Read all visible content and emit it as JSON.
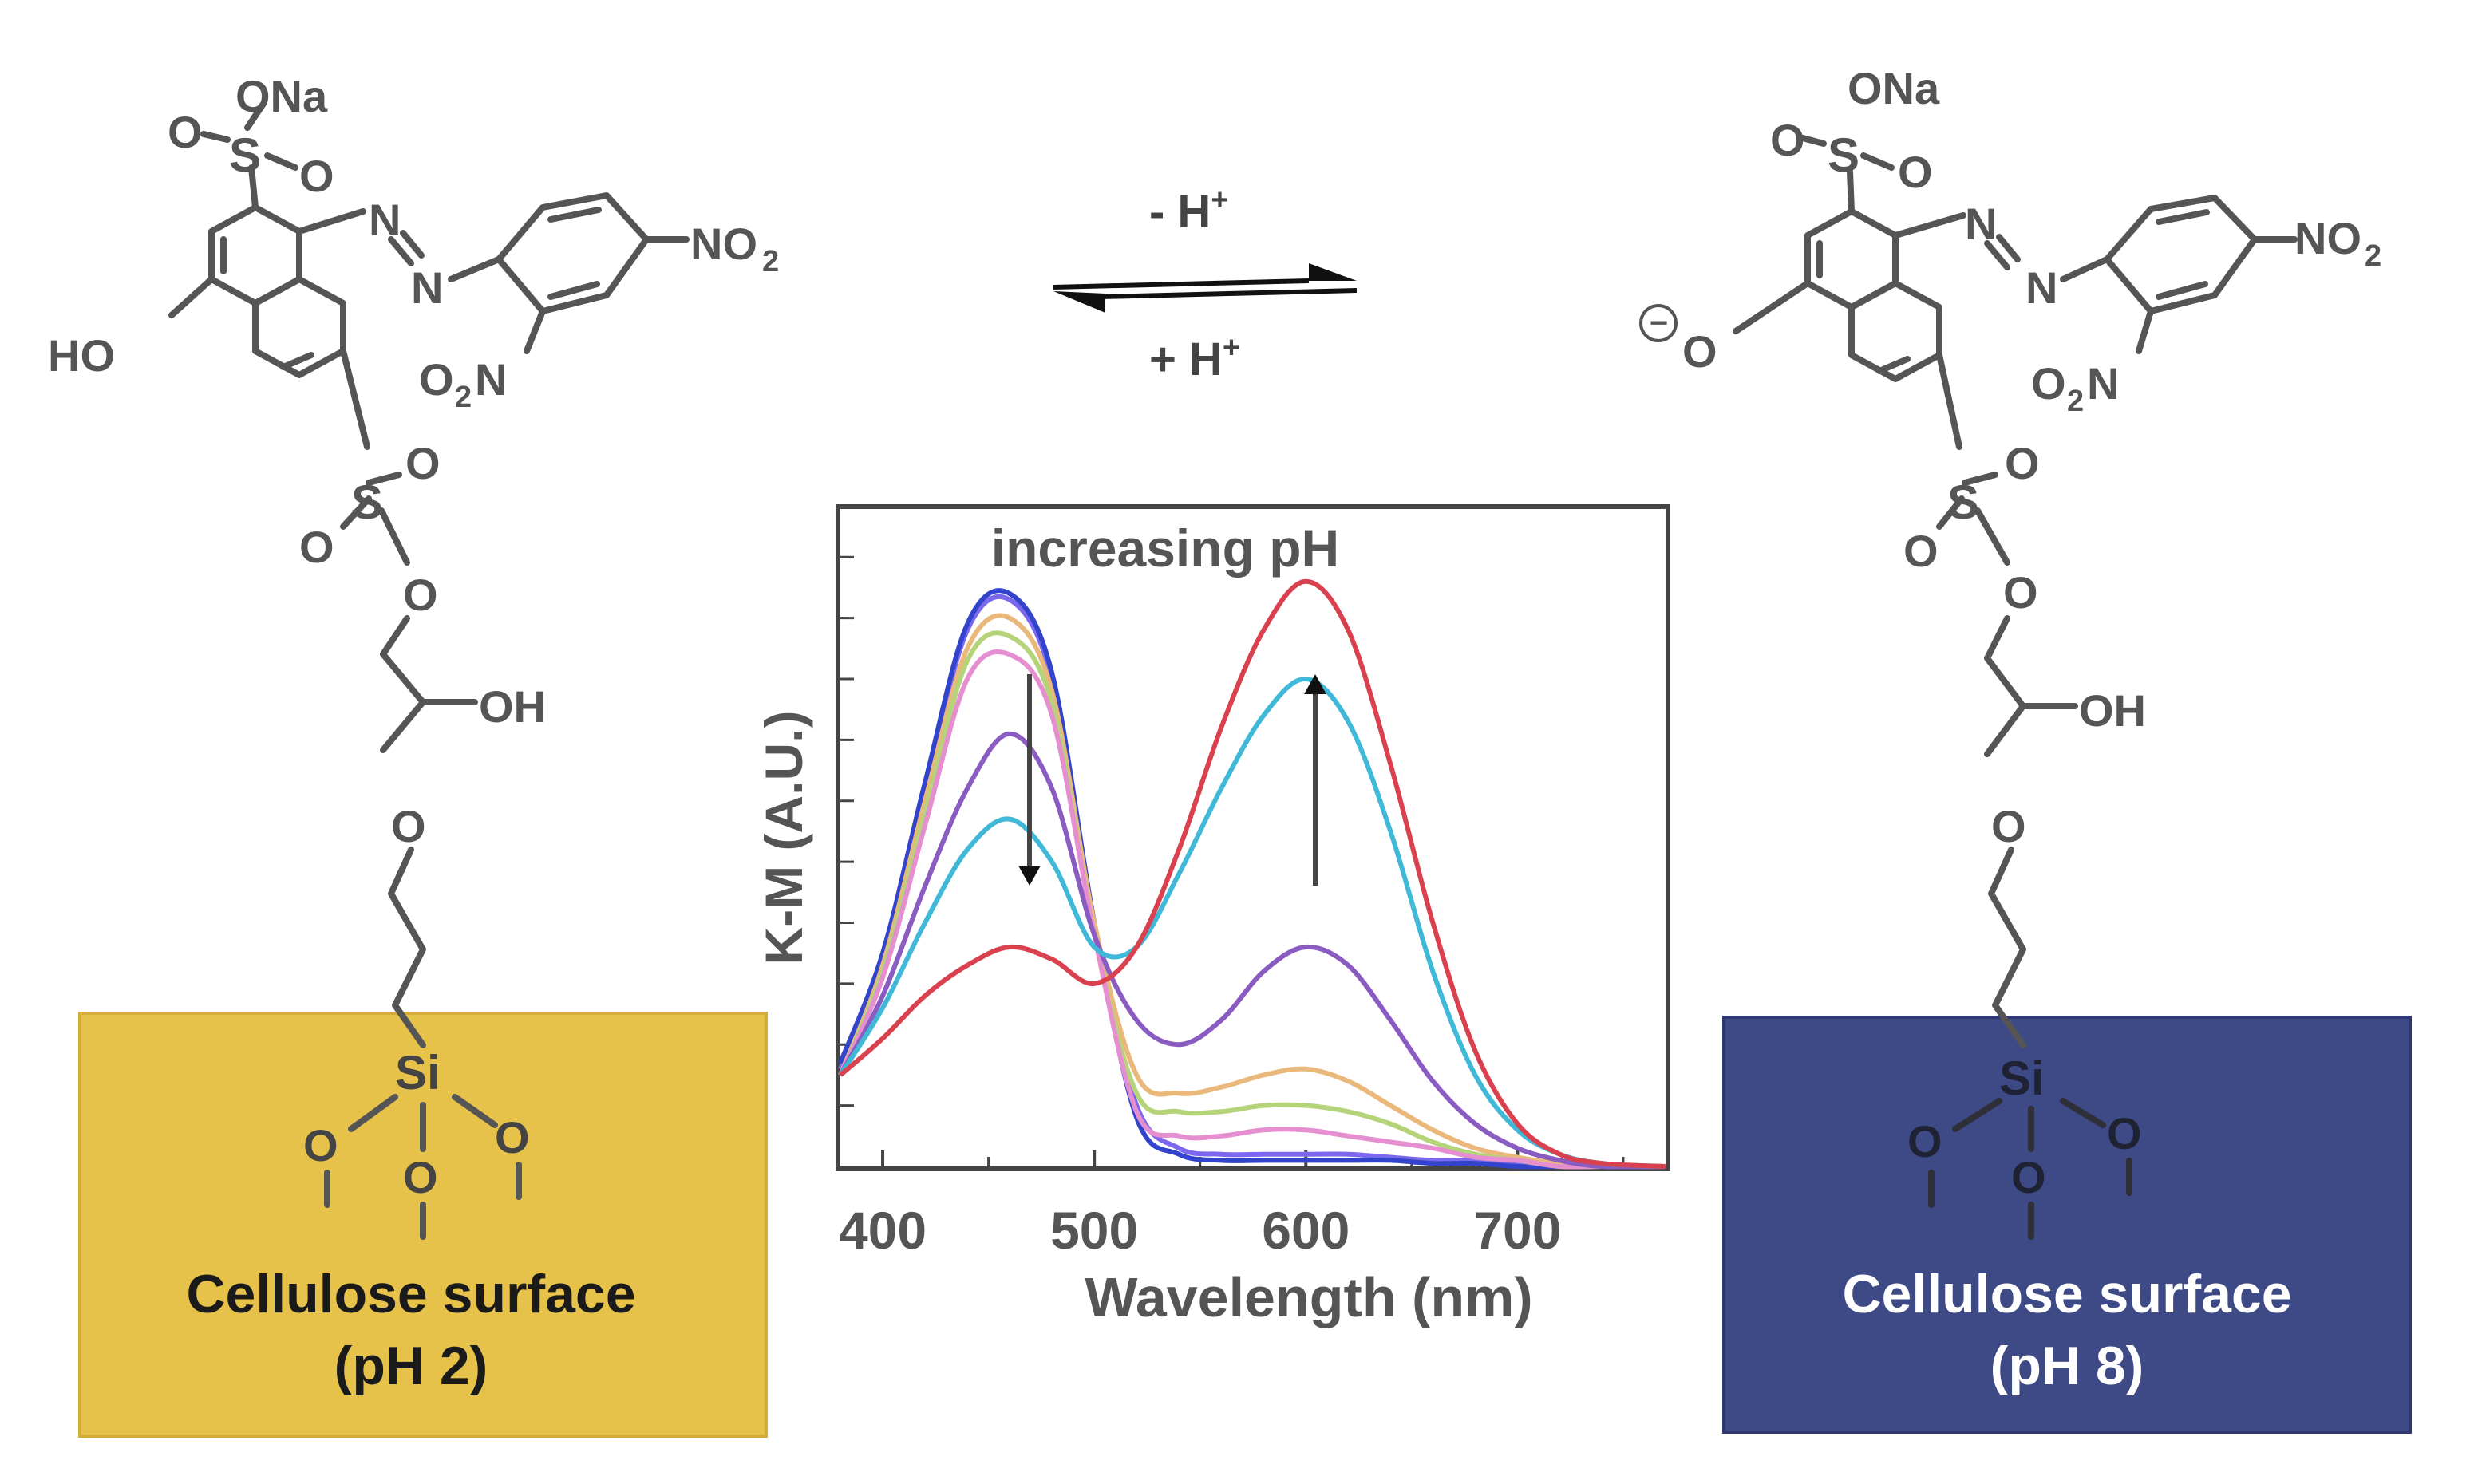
{
  "left_molecule": {
    "ona": "ONa",
    "o": "O",
    "s": "S",
    "n": "N",
    "no2": "NO",
    "sub2": "2",
    "o2n_o": "O",
    "o2n_n": "N",
    "ho": "HO",
    "oh": "OH",
    "si": "Si"
  },
  "right_molecule": {
    "ona": "ONa",
    "o": "O",
    "s": "S",
    "n": "N",
    "no2": "NO",
    "sub2": "2",
    "o2n_o": "O",
    "o2n_n": "N",
    "oh": "OH",
    "minus": "−",
    "si": "Si"
  },
  "equilibrium": {
    "top": "- H",
    "bottom": "+ H",
    "sup": "+"
  },
  "left_surface": {
    "line1": "Cellulose surface",
    "line2": "(pH 2)",
    "color": "#E7C24A"
  },
  "right_surface": {
    "line1": "Cellulose surface",
    "line2": "(pH 8)",
    "color": "#3E4A86"
  },
  "chart_data": {
    "type": "line",
    "annotation": "increasing pH",
    "xlabel": "Wavelength (nm)",
    "ylabel": "K-M (A.U.)",
    "xlim": [
      380,
      770
    ],
    "ylim": [
      0,
      1.05
    ],
    "xticks": [
      400,
      500,
      600,
      700
    ],
    "series": [
      {
        "color": "#7B68EE",
        "x": [
          380,
          400,
          420,
          440,
          460,
          480,
          500,
          520,
          540,
          560,
          580,
          600,
          620,
          640,
          660,
          680,
          700,
          720,
          740,
          770
        ],
        "y": [
          0.16,
          0.34,
          0.62,
          0.88,
          0.93,
          0.8,
          0.4,
          0.1,
          0.03,
          0.02,
          0.02,
          0.02,
          0.02,
          0.015,
          0.01,
          0.01,
          0.005,
          0.005,
          0.0,
          0.0
        ]
      },
      {
        "color": "#3344cc",
        "x": [
          380,
          400,
          420,
          440,
          460,
          480,
          500,
          520,
          540,
          560,
          580,
          600,
          620,
          640,
          660,
          680,
          700,
          720,
          740,
          770
        ],
        "y": [
          0.17,
          0.35,
          0.63,
          0.89,
          0.94,
          0.81,
          0.4,
          0.08,
          0.02,
          0.01,
          0.01,
          0.01,
          0.01,
          0.01,
          0.005,
          0.005,
          0.0,
          0.0,
          0.0,
          0.0
        ]
      },
      {
        "color": "#E9B87A",
        "x": [
          380,
          400,
          420,
          440,
          460,
          480,
          500,
          520,
          540,
          560,
          580,
          600,
          620,
          640,
          660,
          680,
          700,
          720,
          740,
          770
        ],
        "y": [
          0.15,
          0.33,
          0.6,
          0.85,
          0.9,
          0.78,
          0.4,
          0.15,
          0.12,
          0.13,
          0.15,
          0.16,
          0.14,
          0.1,
          0.06,
          0.03,
          0.015,
          0.005,
          0.0,
          0.0
        ]
      },
      {
        "color": "#B5D47A",
        "x": [
          380,
          400,
          420,
          440,
          460,
          480,
          500,
          520,
          540,
          560,
          580,
          600,
          620,
          640,
          660,
          680,
          700,
          720,
          740,
          770
        ],
        "y": [
          0.15,
          0.32,
          0.58,
          0.83,
          0.87,
          0.76,
          0.38,
          0.12,
          0.09,
          0.09,
          0.1,
          0.1,
          0.09,
          0.07,
          0.04,
          0.02,
          0.01,
          0.0,
          0.0,
          0.0
        ]
      },
      {
        "color": "#E58FD0",
        "x": [
          380,
          400,
          420,
          440,
          460,
          480,
          500,
          520,
          540,
          560,
          580,
          600,
          620,
          640,
          660,
          680,
          700,
          720,
          740,
          770
        ],
        "y": [
          0.15,
          0.31,
          0.56,
          0.8,
          0.84,
          0.74,
          0.38,
          0.09,
          0.05,
          0.05,
          0.06,
          0.06,
          0.05,
          0.04,
          0.03,
          0.015,
          0.01,
          0.0,
          0.0,
          0.0
        ]
      },
      {
        "color": "#8A5CC2",
        "x": [
          380,
          400,
          420,
          440,
          460,
          480,
          500,
          520,
          540,
          560,
          580,
          600,
          620,
          640,
          660,
          680,
          700,
          720,
          740,
          770
        ],
        "y": [
          0.15,
          0.28,
          0.46,
          0.62,
          0.71,
          0.62,
          0.38,
          0.24,
          0.2,
          0.24,
          0.32,
          0.36,
          0.33,
          0.24,
          0.14,
          0.07,
          0.03,
          0.01,
          0.0,
          0.0
        ]
      },
      {
        "color": "#40B8D8",
        "x": [
          380,
          400,
          420,
          440,
          460,
          480,
          500,
          520,
          540,
          560,
          580,
          600,
          620,
          640,
          660,
          680,
          700,
          720,
          740,
          770
        ],
        "y": [
          0.15,
          0.26,
          0.4,
          0.52,
          0.57,
          0.5,
          0.36,
          0.36,
          0.48,
          0.62,
          0.74,
          0.8,
          0.73,
          0.55,
          0.32,
          0.15,
          0.06,
          0.02,
          0.005,
          0.0
        ]
      },
      {
        "color": "#D9414F",
        "x": [
          380,
          400,
          420,
          440,
          460,
          480,
          500,
          520,
          540,
          560,
          580,
          600,
          620,
          640,
          660,
          680,
          700,
          720,
          740,
          770
        ],
        "y": [
          0.15,
          0.21,
          0.28,
          0.33,
          0.36,
          0.34,
          0.3,
          0.36,
          0.52,
          0.72,
          0.88,
          0.96,
          0.88,
          0.66,
          0.4,
          0.19,
          0.07,
          0.02,
          0.005,
          0.0
        ]
      }
    ]
  }
}
